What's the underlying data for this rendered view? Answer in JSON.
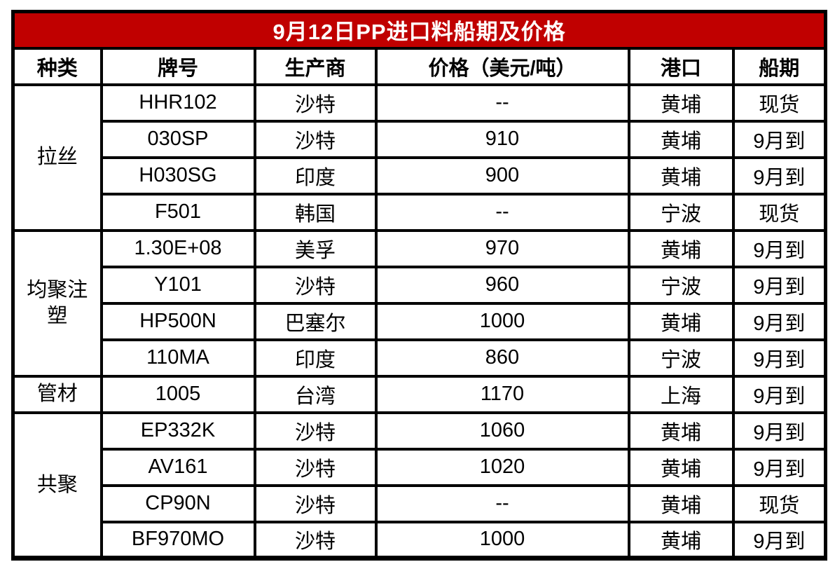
{
  "title": "9月12日PP进口料船期及价格",
  "colors": {
    "title_bg": "#c00000",
    "title_text": "#ffffff",
    "border": "#000000",
    "cell_bg": "#ffffff",
    "cell_text": "#000000"
  },
  "columns": [
    "种类",
    "牌号",
    "生产商",
    "价格（美元/吨）",
    "港口",
    "船期"
  ],
  "groups": [
    {
      "label": "拉丝",
      "rows": [
        [
          "HHR102",
          "沙特",
          "--",
          "黄埔",
          "现货"
        ],
        [
          "030SP",
          "沙特",
          "910",
          "黄埔",
          "9月到"
        ],
        [
          "H030SG",
          "印度",
          "900",
          "黄埔",
          "9月到"
        ],
        [
          "F501",
          "韩国",
          "--",
          "宁波",
          "现货"
        ]
      ]
    },
    {
      "label": "均聚注塑",
      "rows": [
        [
          "1.30E+08",
          "美孚",
          "970",
          "黄埔",
          "9月到"
        ],
        [
          "Y101",
          "沙特",
          "960",
          "宁波",
          "9月到"
        ],
        [
          "HP500N",
          "巴塞尔",
          "1000",
          "黄埔",
          "9月到"
        ],
        [
          "110MA",
          "印度",
          "860",
          "宁波",
          "9月到"
        ]
      ]
    },
    {
      "label": "管材",
      "rows": [
        [
          "1005",
          "台湾",
          "1170",
          "上海",
          "9月到"
        ]
      ]
    },
    {
      "label": "共聚",
      "rows": [
        [
          "EP332K",
          "沙特",
          "1060",
          "黄埔",
          "9月到"
        ],
        [
          "AV161",
          "沙特",
          "1020",
          "黄埔",
          "9月到"
        ],
        [
          "CP90N",
          "沙特",
          "--",
          "黄埔",
          "现货"
        ],
        [
          "BF970MO",
          "沙特",
          "1000",
          "黄埔",
          "9月到"
        ]
      ]
    }
  ],
  "chart_data": {
    "type": "table",
    "title": "9月12日PP进口料船期及价格",
    "columns": [
      "种类",
      "牌号",
      "生产商",
      "价格（美元/吨）",
      "港口",
      "船期"
    ],
    "rows": [
      [
        "拉丝",
        "HHR102",
        "沙特",
        "--",
        "黄埔",
        "现货"
      ],
      [
        "拉丝",
        "030SP",
        "沙特",
        "910",
        "黄埔",
        "9月到"
      ],
      [
        "拉丝",
        "H030SG",
        "印度",
        "900",
        "黄埔",
        "9月到"
      ],
      [
        "拉丝",
        "F501",
        "韩国",
        "--",
        "宁波",
        "现货"
      ],
      [
        "均聚注塑",
        "1.30E+08",
        "美孚",
        "970",
        "黄埔",
        "9月到"
      ],
      [
        "均聚注塑",
        "Y101",
        "沙特",
        "960",
        "宁波",
        "9月到"
      ],
      [
        "均聚注塑",
        "HP500N",
        "巴塞尔",
        "1000",
        "黄埔",
        "9月到"
      ],
      [
        "均聚注塑",
        "110MA",
        "印度",
        "860",
        "宁波",
        "9月到"
      ],
      [
        "管材",
        "1005",
        "台湾",
        "1170",
        "上海",
        "9月到"
      ],
      [
        "共聚",
        "EP332K",
        "沙特",
        "1060",
        "黄埔",
        "9月到"
      ],
      [
        "共聚",
        "AV161",
        "沙特",
        "1020",
        "黄埔",
        "9月到"
      ],
      [
        "共聚",
        "CP90N",
        "沙特",
        "--",
        "黄埔",
        "现货"
      ],
      [
        "共聚",
        "BF970MO",
        "沙特",
        "1000",
        "黄埔",
        "9月到"
      ]
    ]
  }
}
